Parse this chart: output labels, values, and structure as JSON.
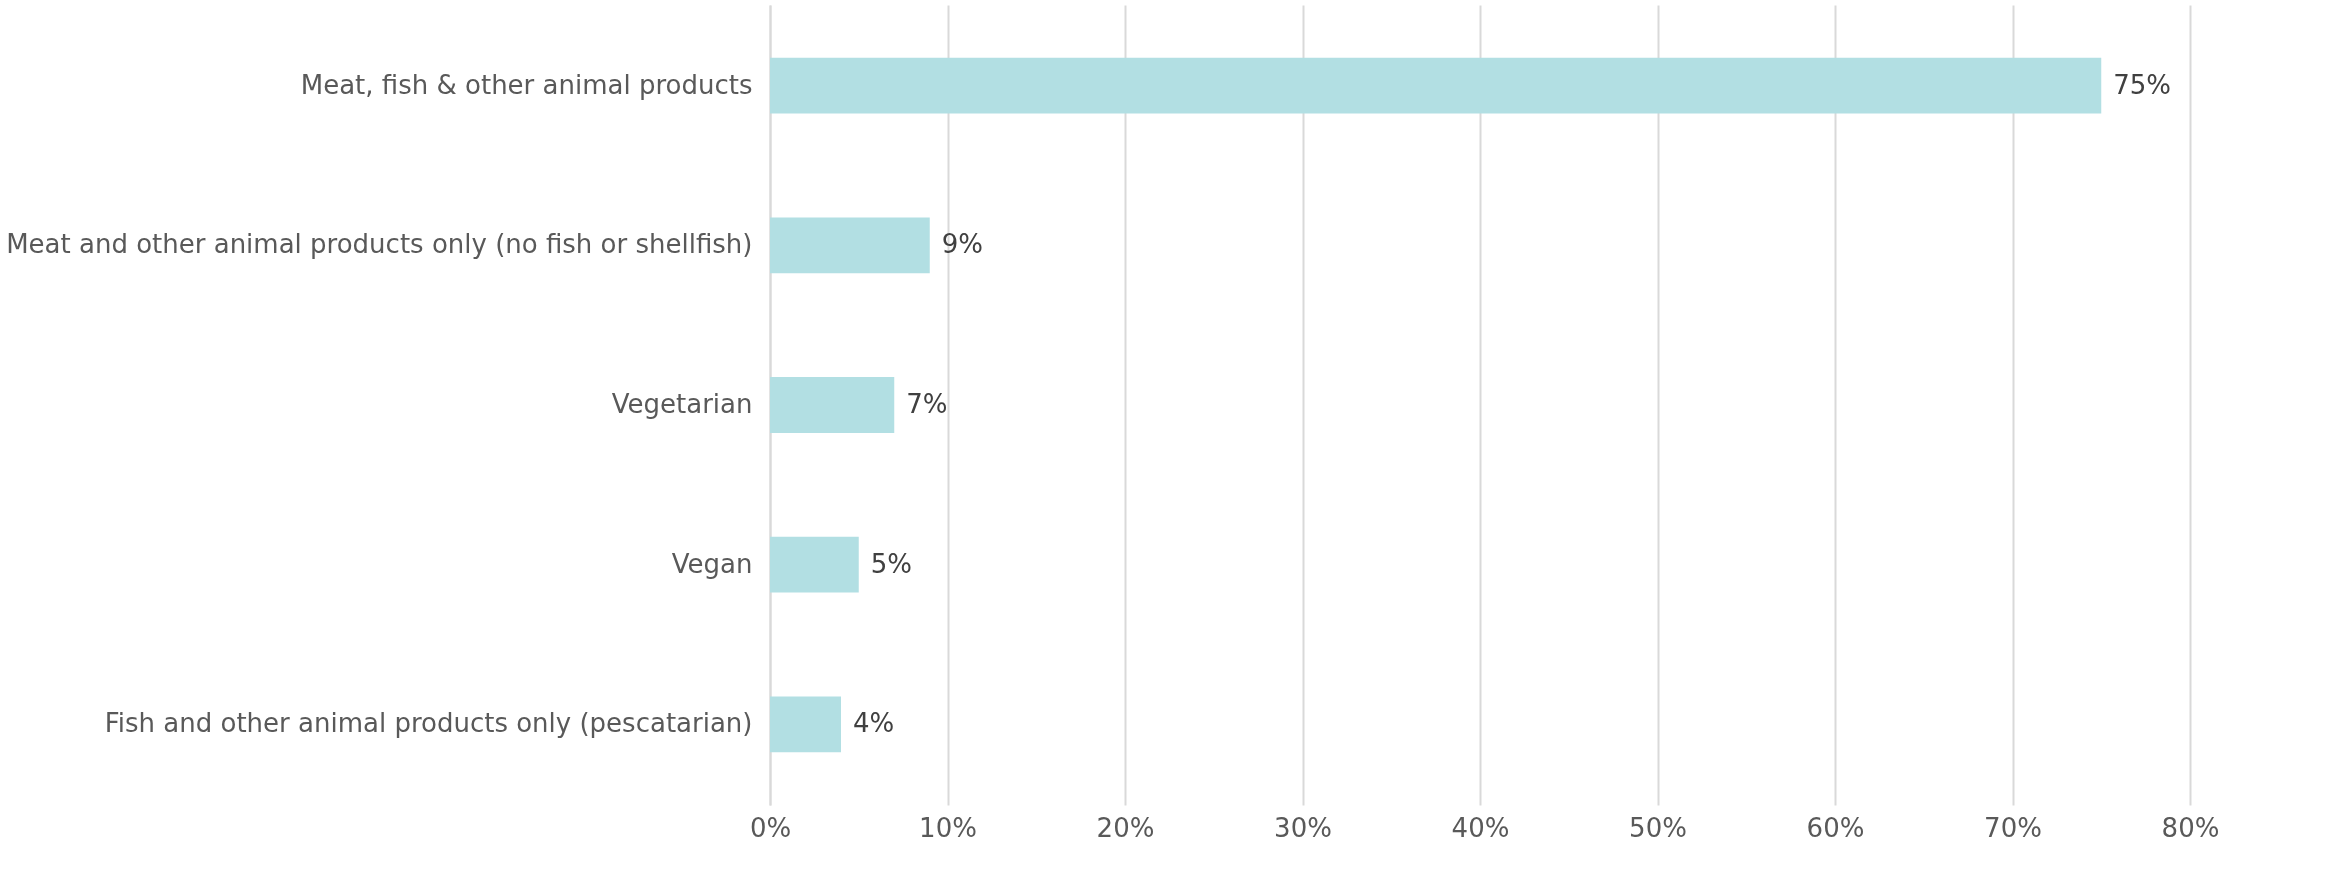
{
  "chart_data": {
    "type": "bar",
    "orientation": "horizontal",
    "categories": [
      "Meat, fish & other animal products",
      "Meat and other animal products only (no fish or shellfish)",
      "Vegetarian",
      "Vegan",
      "Fish and other animal products only (pescatarian)"
    ],
    "values": [
      75,
      9,
      7,
      5,
      4
    ],
    "value_labels": [
      "75%",
      "9%",
      "7%",
      "5%",
      "4%"
    ],
    "color": "#b2dfe3",
    "xlim": [
      0,
      80
    ],
    "xticks": [
      {
        "value": 0,
        "label": "0%"
      },
      {
        "value": 10,
        "label": "10%"
      },
      {
        "value": 20,
        "label": "20%"
      },
      {
        "value": 30,
        "label": "30%"
      },
      {
        "value": 40,
        "label": "40%"
      },
      {
        "value": 50,
        "label": "50%"
      },
      {
        "value": 60,
        "label": "60%"
      },
      {
        "value": 70,
        "label": "70%"
      },
      {
        "value": 80,
        "label": "80%"
      }
    ],
    "grid": "x"
  }
}
